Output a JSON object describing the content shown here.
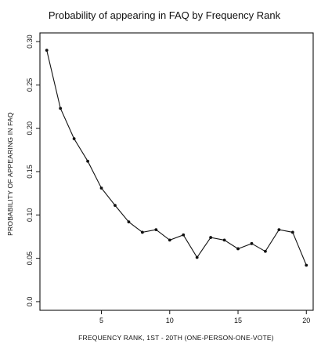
{
  "chart_data": {
    "type": "line",
    "title": "Probability of appearing in FAQ by Frequency Rank",
    "xlabel": "FREQUENCY RANK, 1ST - 20TH (ONE-PERSON-ONE-VOTE)",
    "ylabel": "PROBABILITY OF APPEARING IN FAQ",
    "xlim": [
      0.5,
      20.5
    ],
    "ylim": [
      -0.01,
      0.31
    ],
    "x_ticks": [
      5,
      10,
      15,
      20
    ],
    "x_tick_labels": [
      "5",
      "10",
      "15",
      "20"
    ],
    "y_ticks": [
      0.0,
      0.05,
      0.1,
      0.15,
      0.2,
      0.25,
      0.3
    ],
    "y_tick_labels": [
      "0.0",
      "0.05",
      "0.10",
      "0.15",
      "0.20",
      "0.25",
      "0.30"
    ],
    "grid": false,
    "legend": "none",
    "x": [
      1,
      2,
      3,
      4,
      5,
      6,
      7,
      8,
      9,
      10,
      11,
      12,
      13,
      14,
      15,
      16,
      17,
      18,
      19,
      20
    ],
    "y": [
      0.29,
      0.223,
      0.188,
      0.162,
      0.131,
      0.111,
      0.092,
      0.08,
      0.083,
      0.071,
      0.077,
      0.051,
      0.074,
      0.071,
      0.061,
      0.067,
      0.058,
      0.083,
      0.08,
      0.042
    ],
    "line_color": "#111111"
  }
}
